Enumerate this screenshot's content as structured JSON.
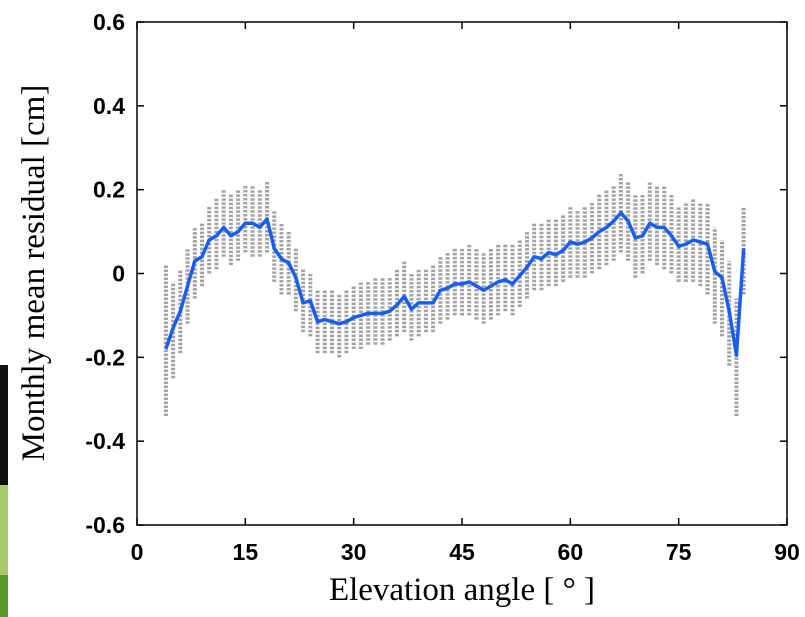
{
  "chart_data": {
    "type": "line",
    "xlabel": "Elevation angle [ ° ]",
    "ylabel": "Monthly mean residual [cm]",
    "x": [
      4,
      5,
      6,
      7,
      8,
      9,
      10,
      11,
      12,
      13,
      14,
      15,
      16,
      17,
      18,
      19,
      20,
      21,
      22,
      23,
      24,
      25,
      26,
      27,
      28,
      29,
      30,
      31,
      32,
      33,
      34,
      35,
      36,
      37,
      38,
      39,
      40,
      41,
      42,
      43,
      44,
      45,
      46,
      47,
      48,
      49,
      50,
      51,
      52,
      53,
      54,
      55,
      56,
      57,
      58,
      59,
      60,
      61,
      62,
      63,
      64,
      65,
      66,
      67,
      68,
      69,
      70,
      71,
      72,
      73,
      74,
      75,
      76,
      77,
      78,
      79,
      80,
      81,
      82,
      83,
      84
    ],
    "series": [
      {
        "color": "#1a5ef0",
        "values": [
          -0.18,
          -0.13,
          -0.09,
          -0.03,
          0.03,
          0.04,
          0.08,
          0.09,
          0.11,
          0.09,
          0.1,
          0.12,
          0.12,
          0.11,
          0.13,
          0.06,
          0.035,
          0.025,
          -0.01,
          -0.07,
          -0.065,
          -0.115,
          -0.11,
          -0.115,
          -0.12,
          -0.115,
          -0.105,
          -0.1,
          -0.095,
          -0.095,
          -0.095,
          -0.09,
          -0.075,
          -0.055,
          -0.085,
          -0.07,
          -0.07,
          -0.07,
          -0.04,
          -0.035,
          -0.025,
          -0.025,
          -0.02,
          -0.03,
          -0.04,
          -0.03,
          -0.02,
          -0.015,
          -0.025,
          -0.005,
          0.015,
          0.04,
          0.035,
          0.05,
          0.045,
          0.055,
          0.075,
          0.07,
          0.075,
          0.085,
          0.1,
          0.11,
          0.125,
          0.145,
          0.125,
          0.085,
          0.09,
          0.12,
          0.11,
          0.11,
          0.09,
          0.065,
          0.07,
          0.08,
          0.075,
          0.07,
          0.005,
          -0.01,
          -0.09,
          -0.195,
          0.06
        ]
      }
    ],
    "spread": {
      "color": "#a3a3a3",
      "low": [
        -0.34,
        -0.25,
        -0.19,
        -0.12,
        -0.06,
        -0.03,
        0.0,
        0.01,
        0.04,
        0.02,
        0.03,
        0.05,
        0.04,
        0.04,
        0.05,
        -0.02,
        -0.05,
        -0.05,
        -0.09,
        -0.14,
        -0.15,
        -0.19,
        -0.19,
        -0.19,
        -0.2,
        -0.19,
        -0.18,
        -0.18,
        -0.17,
        -0.17,
        -0.17,
        -0.16,
        -0.15,
        -0.14,
        -0.16,
        -0.15,
        -0.14,
        -0.14,
        -0.12,
        -0.11,
        -0.1,
        -0.1,
        -0.1,
        -0.11,
        -0.12,
        -0.11,
        -0.1,
        -0.09,
        -0.1,
        -0.08,
        -0.06,
        -0.04,
        -0.04,
        -0.03,
        -0.03,
        -0.02,
        -0.01,
        -0.01,
        -0.01,
        0.0,
        0.01,
        0.02,
        0.03,
        0.05,
        0.03,
        -0.01,
        0.0,
        0.03,
        0.02,
        0.01,
        0.0,
        -0.02,
        -0.02,
        -0.02,
        -0.03,
        -0.05,
        -0.12,
        -0.15,
        -0.22,
        -0.34,
        -0.05
      ],
      "high": [
        0.02,
        -0.02,
        0.01,
        0.06,
        0.11,
        0.12,
        0.16,
        0.18,
        0.2,
        0.19,
        0.2,
        0.21,
        0.21,
        0.2,
        0.22,
        0.15,
        0.12,
        0.1,
        0.06,
        0.01,
        0.0,
        -0.04,
        -0.04,
        -0.04,
        -0.05,
        -0.04,
        -0.03,
        -0.02,
        -0.02,
        -0.01,
        -0.01,
        -0.01,
        0.01,
        0.03,
        0.0,
        0.01,
        0.01,
        0.02,
        0.04,
        0.05,
        0.06,
        0.06,
        0.07,
        0.06,
        0.05,
        0.06,
        0.07,
        0.07,
        0.07,
        0.08,
        0.1,
        0.12,
        0.12,
        0.13,
        0.13,
        0.14,
        0.16,
        0.15,
        0.16,
        0.17,
        0.19,
        0.2,
        0.21,
        0.24,
        0.22,
        0.19,
        0.19,
        0.22,
        0.21,
        0.21,
        0.19,
        0.16,
        0.17,
        0.18,
        0.17,
        0.17,
        0.11,
        0.08,
        0.03,
        -0.06,
        0.16
      ]
    },
    "xlim": [
      0,
      90
    ],
    "xticks": [
      0,
      15,
      30,
      45,
      60,
      75,
      90
    ],
    "ylim": [
      -0.6,
      0.6
    ],
    "yticks": [
      -0.6,
      -0.4,
      -0.2,
      0,
      0.2,
      0.4,
      0.6
    ]
  }
}
